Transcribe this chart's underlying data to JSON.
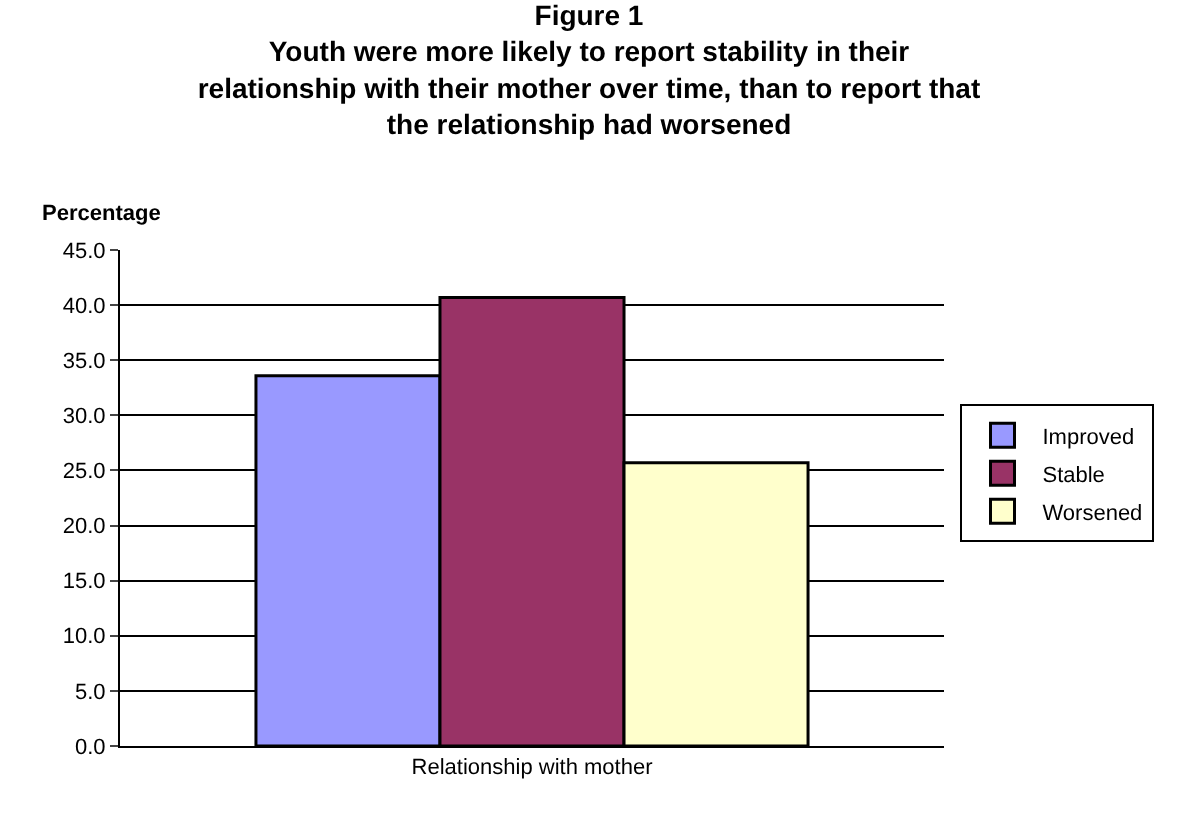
{
  "chart_data": {
    "type": "bar",
    "title": "Figure 1",
    "subtitle": "Youth were more likely to report stability in their relationship with their mother over time, than to report that the relationship had worsened",
    "ylabel": "Percentage",
    "categories": [
      "Relationship with mother"
    ],
    "series": [
      {
        "name": "Improved",
        "color": "#9999ff",
        "values": [
          33.6
        ]
      },
      {
        "name": "Stable",
        "color": "#993366",
        "values": [
          40.7
        ]
      },
      {
        "name": "Worsened",
        "color": "#ffffcc",
        "values": [
          25.7
        ]
      }
    ],
    "ylim": [
      0,
      45
    ],
    "yticks": [
      {
        "value": 0,
        "label": "0.0"
      },
      {
        "value": 5,
        "label": "5.0"
      },
      {
        "value": 10,
        "label": "10.0"
      },
      {
        "value": 15,
        "label": "15.0"
      },
      {
        "value": 20,
        "label": "20.0"
      },
      {
        "value": 25,
        "label": "25.0"
      },
      {
        "value": 30,
        "label": "30.0"
      },
      {
        "value": 35,
        "label": "35.0"
      },
      {
        "value": 40,
        "label": "40.0"
      },
      {
        "value": 45,
        "label": "45.0"
      }
    ],
    "grid": "y",
    "legend": "right"
  }
}
